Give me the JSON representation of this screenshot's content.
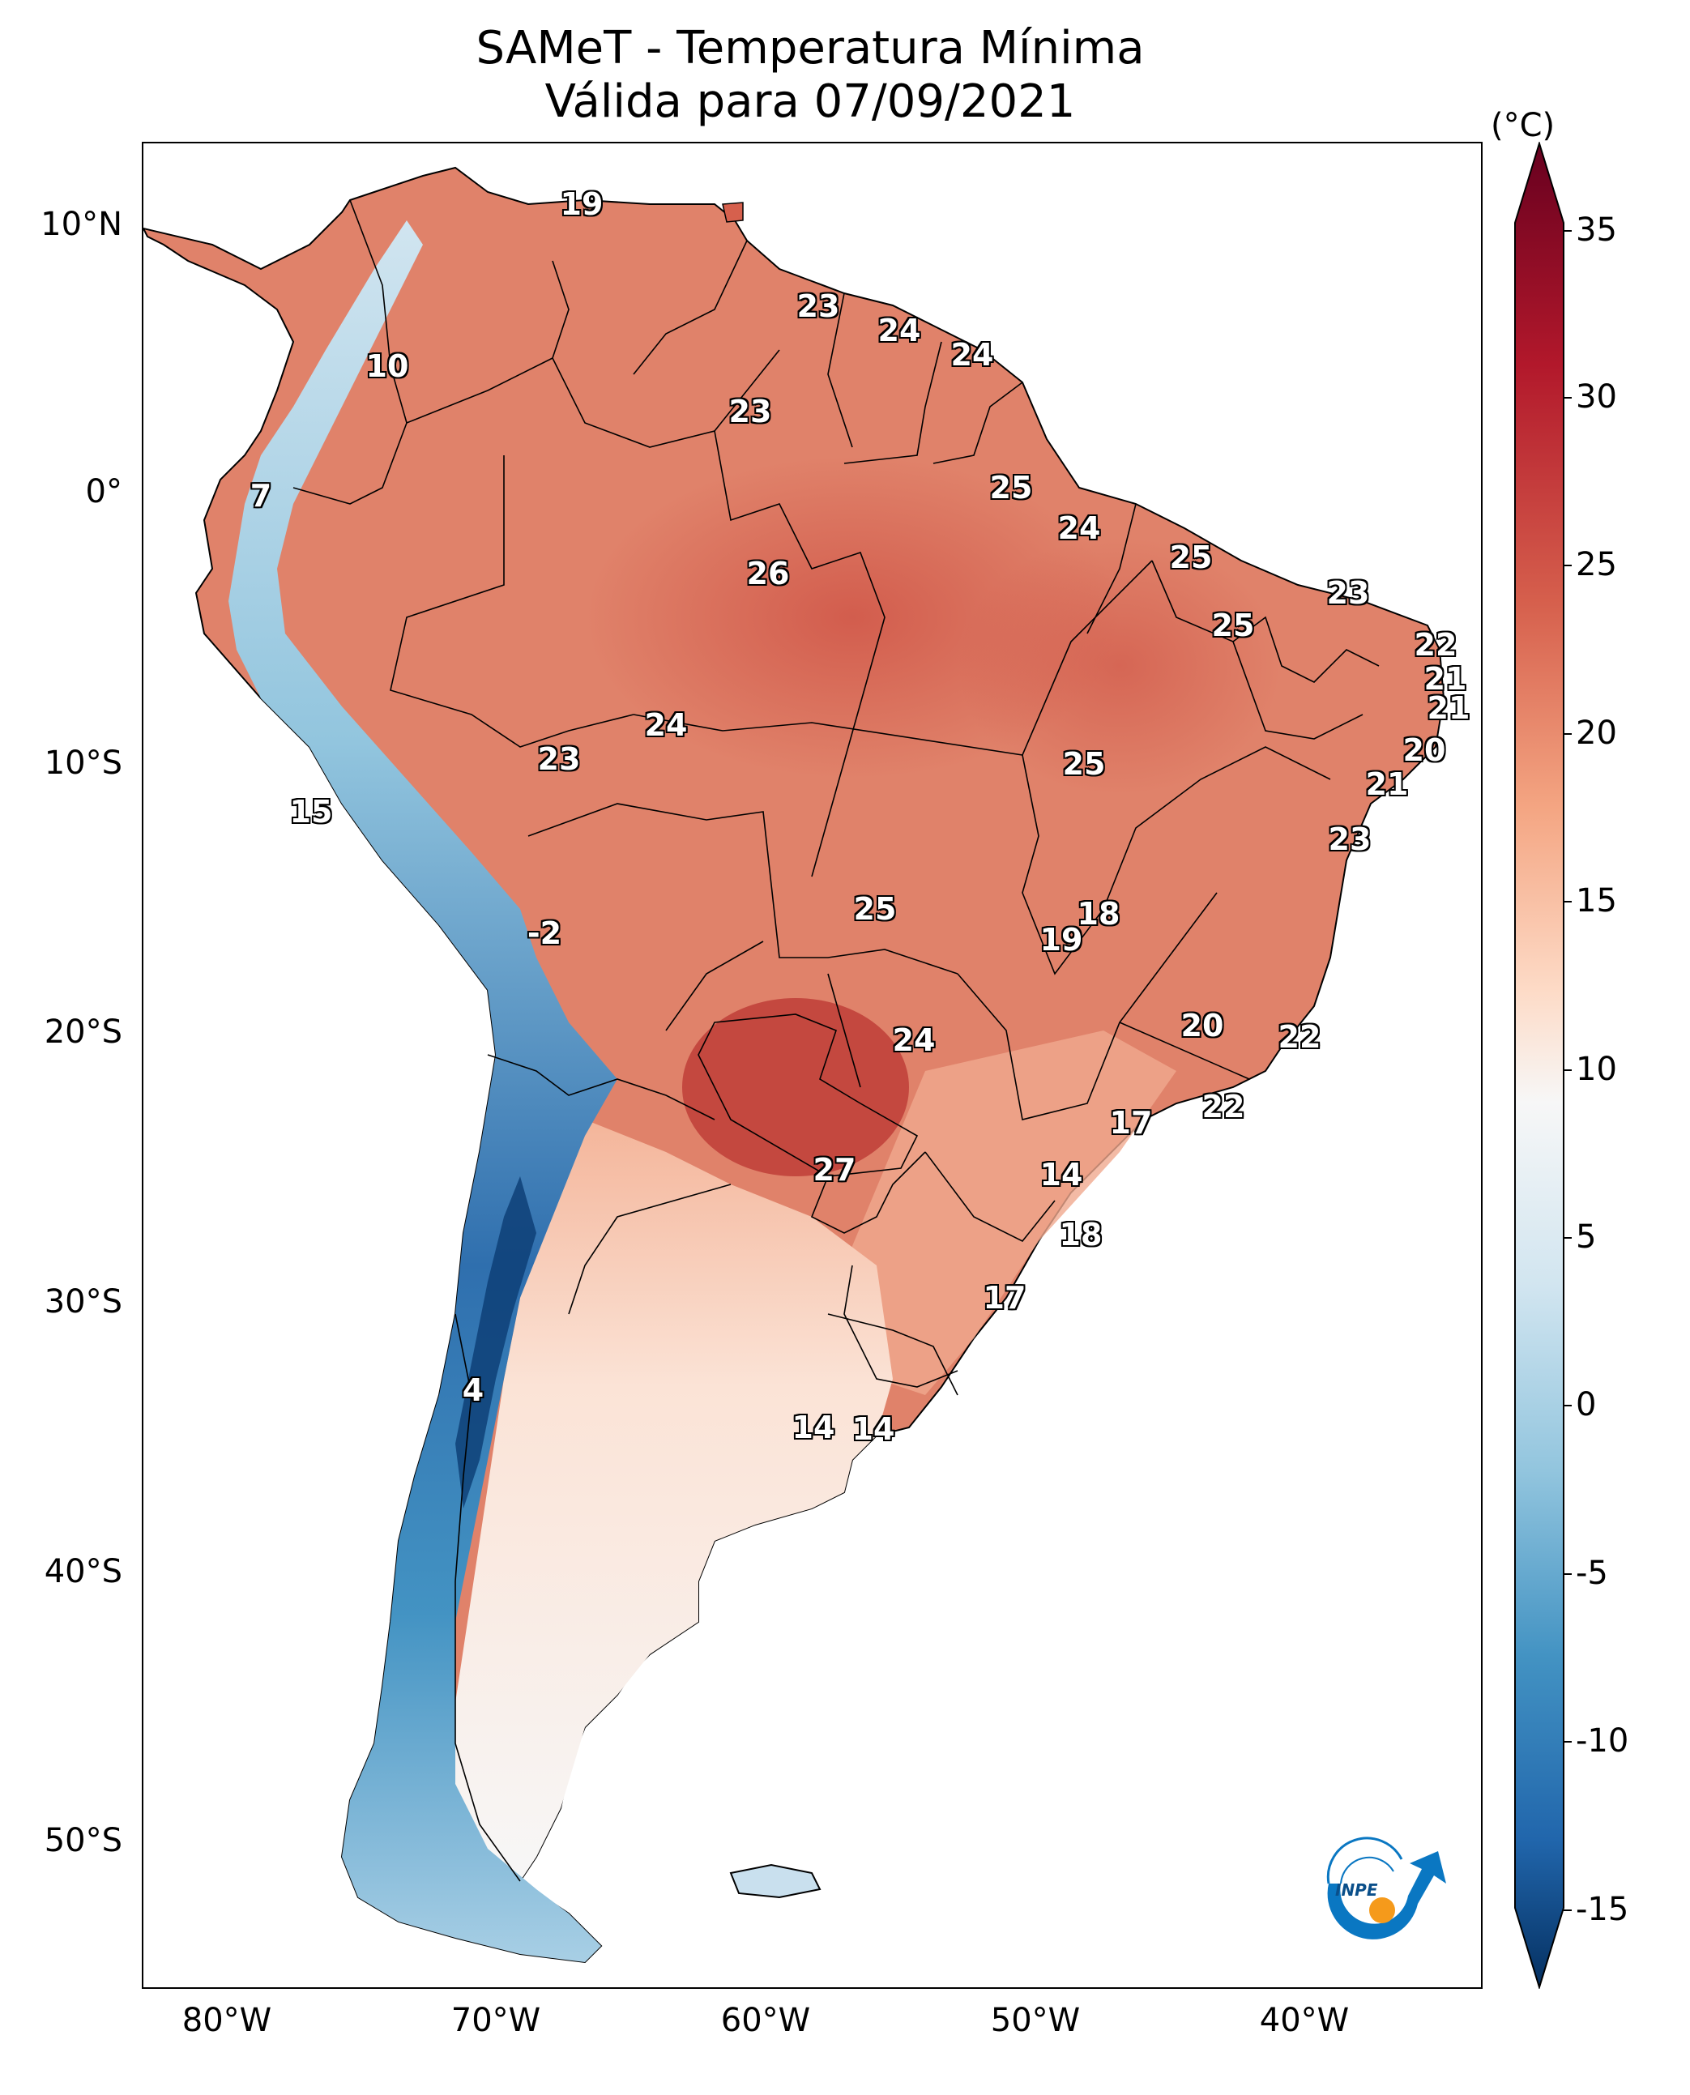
{
  "title": {
    "line1": "SAMeT - Temperatura Mínima",
    "line2": "Válida para 07/09/2021"
  },
  "axes": {
    "lat_labels": [
      "10°N",
      "0°",
      "10°S",
      "20°S",
      "30°S",
      "40°S",
      "50°S"
    ],
    "lon_labels": [
      "80°W",
      "70°W",
      "60°W",
      "50°W",
      "40°W"
    ]
  },
  "colorbar": {
    "unit": "(°C)",
    "ticks": [
      "35",
      "30",
      "25",
      "20",
      "15",
      "10",
      "5",
      "0",
      "-5",
      "-10",
      "-15"
    ],
    "colors": {
      "max": "#67001f",
      "warm": "#d6604d",
      "mild": "#f4a582",
      "neutral": "#f7f7f7",
      "cool": "#92c5de",
      "cold": "#4393c3",
      "min": "#053061"
    }
  },
  "labels": [
    {
      "v": "19"
    },
    {
      "v": "23"
    },
    {
      "v": "24"
    },
    {
      "v": "24"
    },
    {
      "v": "10"
    },
    {
      "v": "23"
    },
    {
      "v": "7"
    },
    {
      "v": "25"
    },
    {
      "v": "24"
    },
    {
      "v": "25"
    },
    {
      "v": "26"
    },
    {
      "v": "23"
    },
    {
      "v": "25"
    },
    {
      "v": "22"
    },
    {
      "v": "21"
    },
    {
      "v": "21"
    },
    {
      "v": "24"
    },
    {
      "v": "23"
    },
    {
      "v": "25"
    },
    {
      "v": "20"
    },
    {
      "v": "21"
    },
    {
      "v": "15"
    },
    {
      "v": "23"
    },
    {
      "v": "25"
    },
    {
      "v": "18"
    },
    {
      "v": "-2"
    },
    {
      "v": "19"
    },
    {
      "v": "20"
    },
    {
      "v": "22"
    },
    {
      "v": "24"
    },
    {
      "v": "22"
    },
    {
      "v": "17"
    },
    {
      "v": "27"
    },
    {
      "v": "14"
    },
    {
      "v": "18"
    },
    {
      "v": "17"
    },
    {
      "v": "4"
    },
    {
      "v": "14"
    },
    {
      "v": "14"
    }
  ],
  "logo": {
    "text": "INPE"
  }
}
